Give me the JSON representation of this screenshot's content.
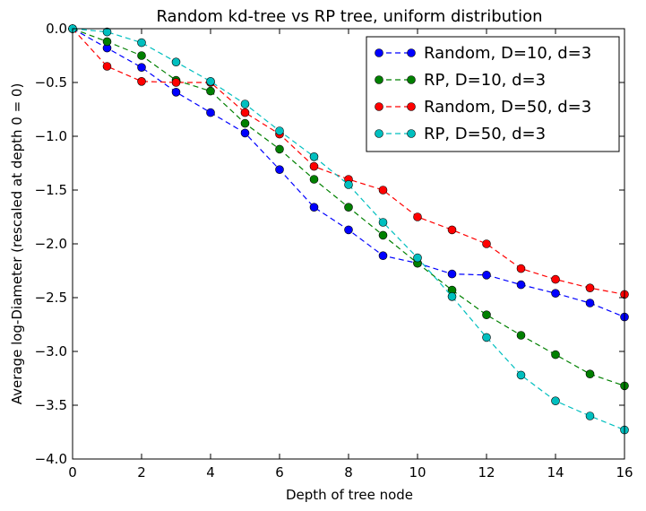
{
  "chart_data": {
    "type": "line",
    "title": "Random kd-tree vs RP tree, uniform distribution",
    "xlabel": "Depth of tree node",
    "ylabel": "Average log-Diameter (rescaled at depth 0 = 0)",
    "xlim": [
      0,
      16
    ],
    "ylim": [
      -4.0,
      0.0
    ],
    "xticks": [
      0,
      2,
      4,
      6,
      8,
      10,
      12,
      14,
      16
    ],
    "xtick_labels": [
      "0",
      "2",
      "4",
      "6",
      "8",
      "10",
      "12",
      "14",
      "16"
    ],
    "yticks": [
      0.0,
      -0.5,
      -1.0,
      -1.5,
      -2.0,
      -2.5,
      -3.0,
      -3.5,
      -4.0
    ],
    "ytick_labels": [
      "0.0",
      "−0.5",
      "−1.0",
      "−1.5",
      "−2.0",
      "−2.5",
      "−3.0",
      "−3.5",
      "−4.0"
    ],
    "grid": false,
    "legend_position": "top-right",
    "x": [
      0,
      1,
      2,
      3,
      4,
      5,
      6,
      7,
      8,
      9,
      10,
      11,
      12,
      13,
      14,
      15,
      16
    ],
    "series": [
      {
        "name": "Random, D=10, d=3",
        "color": "#0000ff",
        "values": [
          0.0,
          -0.18,
          -0.36,
          -0.59,
          -0.78,
          -0.97,
          -1.31,
          -1.66,
          -1.87,
          -2.11,
          -2.18,
          -2.28,
          -2.29,
          -2.38,
          -2.46,
          -2.55,
          -2.68
        ]
      },
      {
        "name": "RP, D=10, d=3",
        "color": "#008000",
        "values": [
          0.0,
          -0.12,
          -0.25,
          -0.48,
          -0.58,
          -0.88,
          -1.12,
          -1.4,
          -1.66,
          -1.92,
          -2.18,
          -2.43,
          -2.66,
          -2.85,
          -3.03,
          -3.21,
          -3.32
        ]
      },
      {
        "name": "Random, D=50, d=3",
        "color": "#ff0000",
        "values": [
          0.0,
          -0.35,
          -0.49,
          -0.5,
          -0.5,
          -0.78,
          -0.98,
          -1.28,
          -1.4,
          -1.5,
          -1.75,
          -1.87,
          -2.0,
          -2.23,
          -2.33,
          -2.41,
          -2.47
        ]
      },
      {
        "name": "RP, D=50, d=3",
        "color": "#00bfbf",
        "values": [
          0.0,
          -0.03,
          -0.13,
          -0.31,
          -0.49,
          -0.7,
          -0.95,
          -1.19,
          -1.45,
          -1.8,
          -2.13,
          -2.49,
          -2.87,
          -3.22,
          -3.46,
          -3.6,
          -3.73
        ]
      }
    ]
  }
}
